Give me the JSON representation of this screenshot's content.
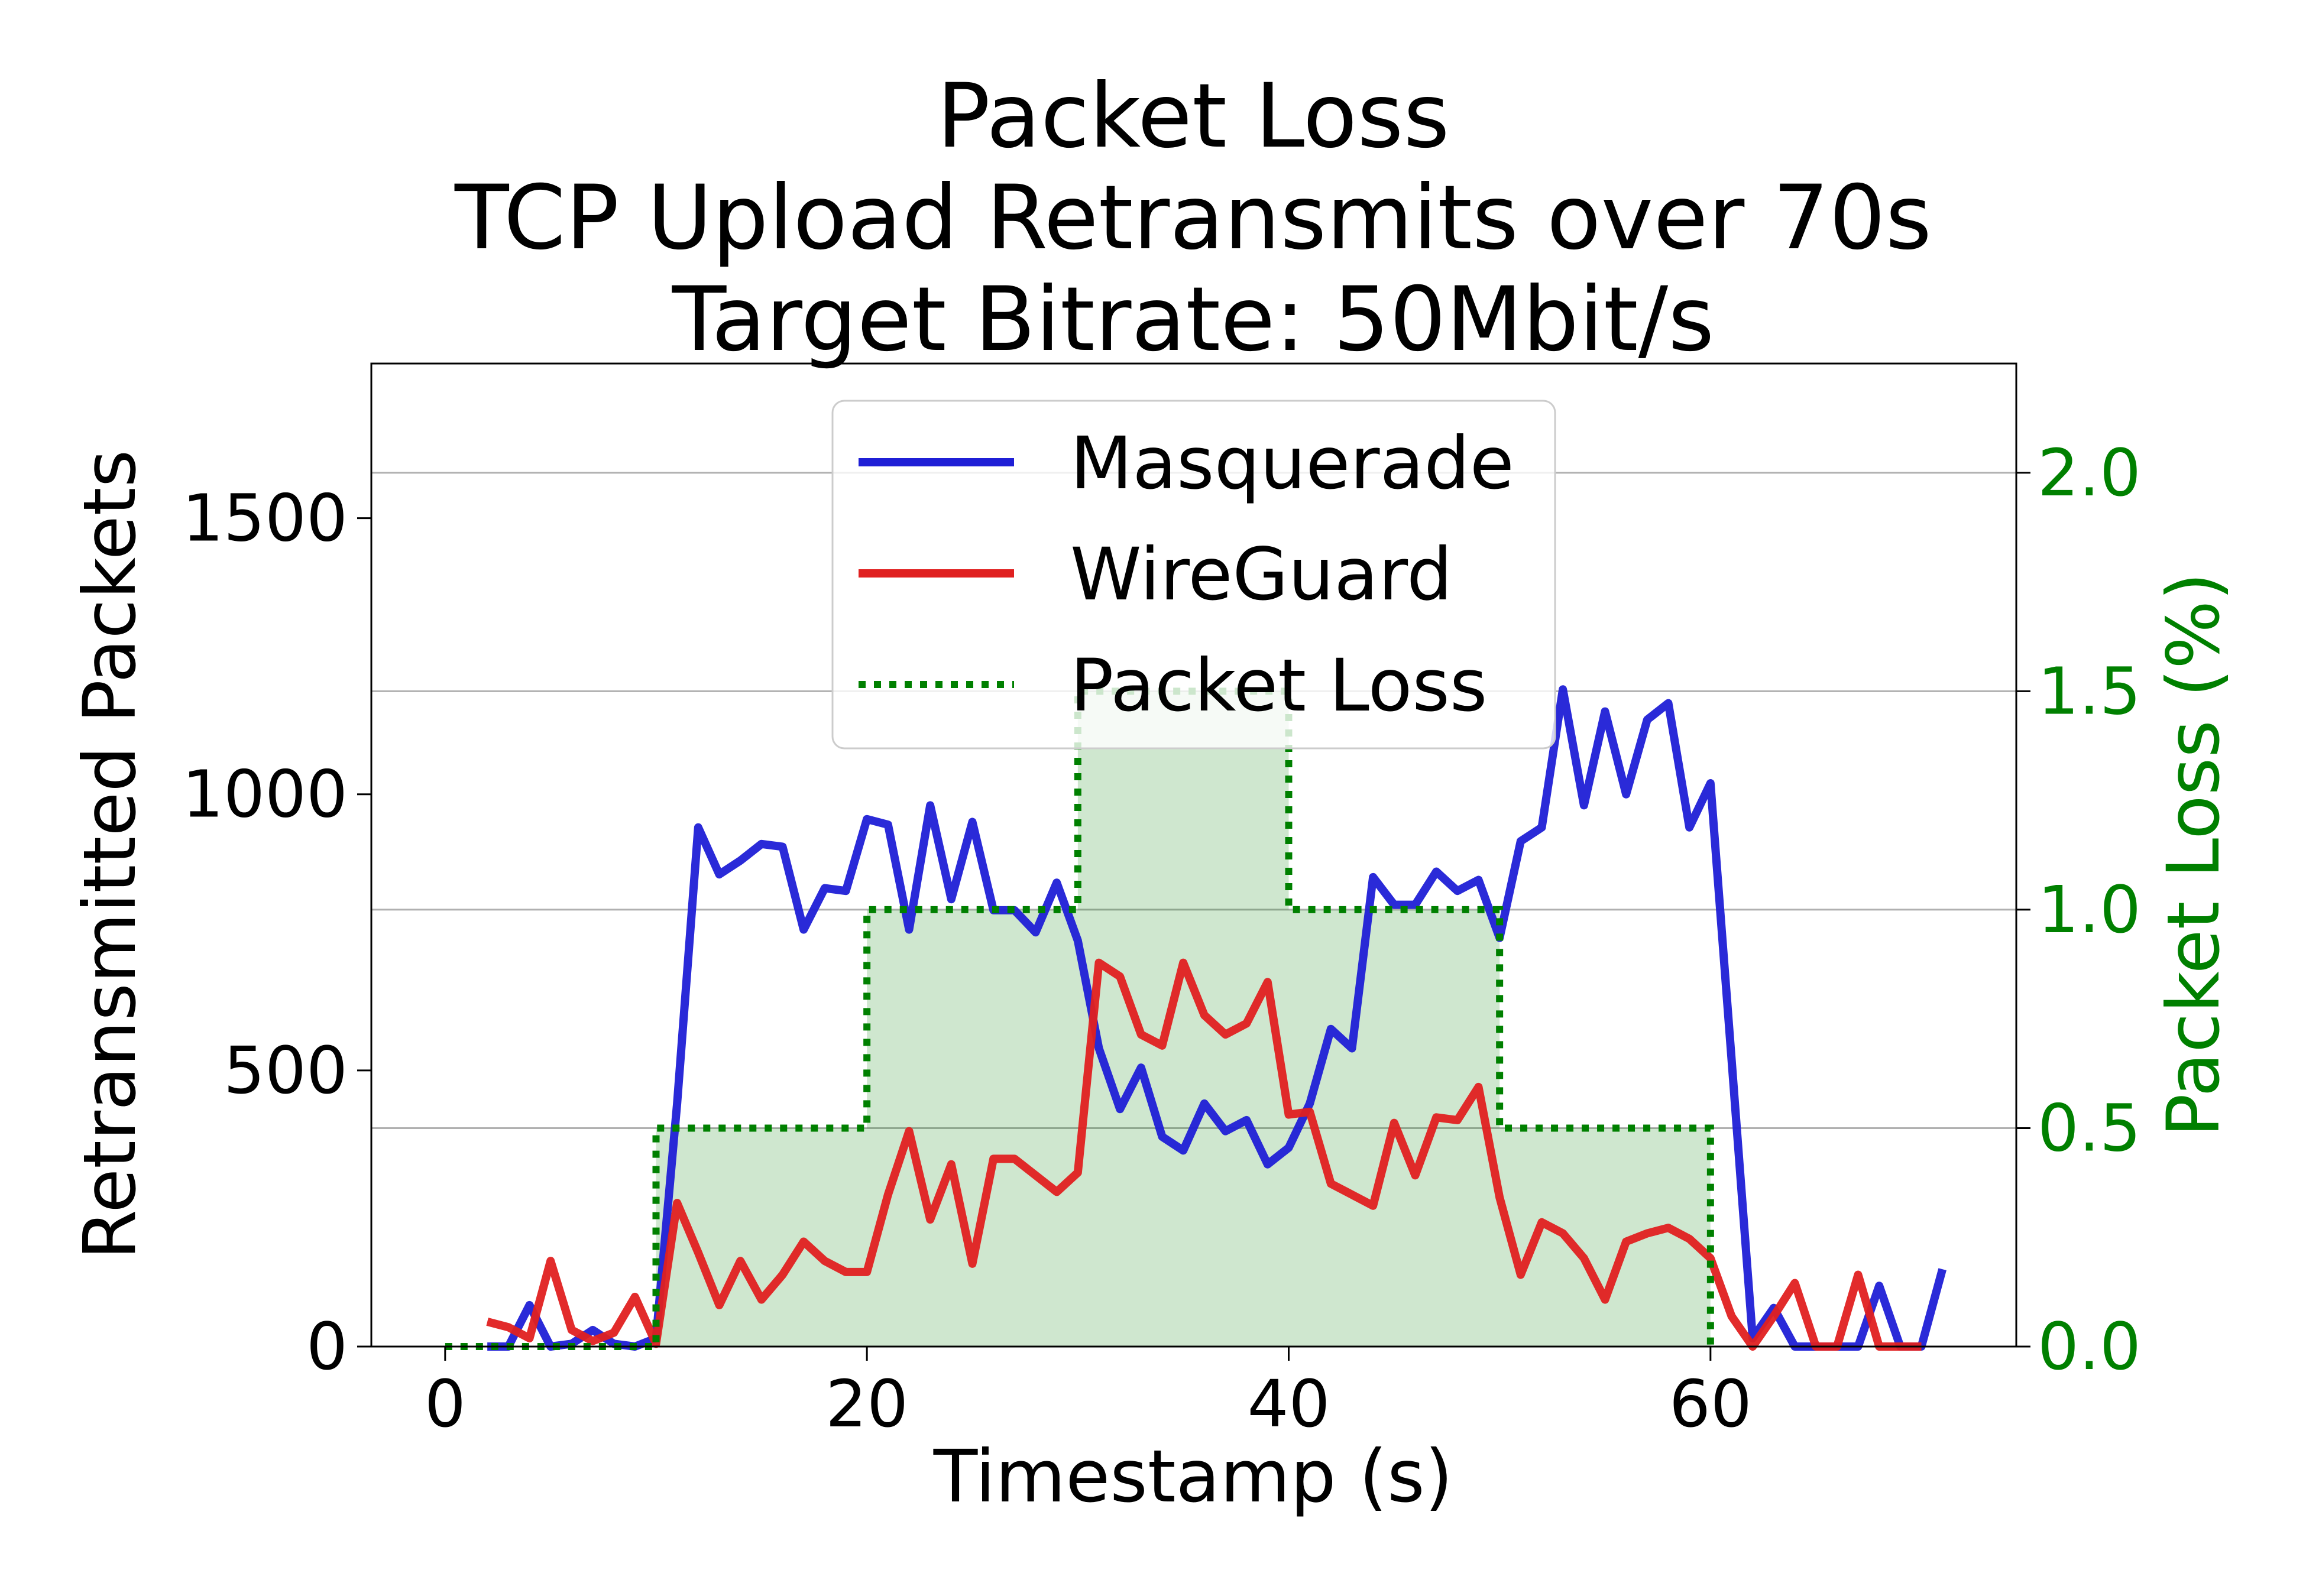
{
  "chart_data": {
    "type": "line",
    "title_lines": [
      "Packet Loss",
      "TCP Upload Retransmits over 70s",
      "Target Bitrate: 50Mbit/s"
    ],
    "xlabel": "Timestamp (s)",
    "ylabel": "Retransmitted Packets",
    "ylabel_right": "Packet Loss (%)",
    "xlim": [
      -3.5,
      74.5
    ],
    "ylim": [
      0,
      1780
    ],
    "ylim_right": [
      0,
      2.25
    ],
    "x_ticks": [
      0,
      20,
      40,
      60
    ],
    "x_tick_labels": [
      "0",
      "20",
      "40",
      "60"
    ],
    "y_ticks": [
      0,
      500,
      1000,
      1500
    ],
    "y_tick_labels": [
      "0",
      "500",
      "1000",
      "1500"
    ],
    "y_right_ticks": [
      0,
      0.5,
      1.0,
      1.5,
      2.0
    ],
    "y_right_tick_labels": [
      "0.0",
      "0.5",
      "1.0",
      "1.5",
      "2.0"
    ],
    "grid": "right-axis horizontal",
    "legend_position": "top-center",
    "series": [
      {
        "name": "Masquerade",
        "color": "#1f1fd6",
        "x": [
          2,
          3,
          4,
          5,
          6,
          7,
          8,
          9,
          10,
          11,
          12,
          13,
          14,
          15,
          16,
          17,
          18,
          19,
          20,
          21,
          22,
          23,
          24,
          25,
          26,
          27,
          28,
          29,
          30,
          31,
          32,
          33,
          34,
          35,
          36,
          37,
          38,
          39,
          40,
          41,
          42,
          43,
          44,
          45,
          46,
          47,
          48,
          49,
          50,
          51,
          52,
          53,
          54,
          55,
          56,
          57,
          58,
          59,
          60,
          61,
          62,
          63,
          64,
          65,
          66,
          67,
          68,
          69,
          70,
          71
        ],
        "values": [
          0,
          0,
          75,
          0,
          5,
          30,
          5,
          0,
          15,
          440,
          940,
          855,
          880,
          910,
          905,
          755,
          830,
          825,
          955,
          945,
          755,
          980,
          810,
          950,
          790,
          790,
          750,
          840,
          735,
          540,
          430,
          505,
          380,
          355,
          440,
          390,
          410,
          330,
          360,
          440,
          575,
          540,
          850,
          800,
          800,
          860,
          825,
          845,
          740,
          915,
          940,
          1190,
          980,
          1150,
          1000,
          1135,
          1165,
          940,
          1020,
          520,
          15,
          70,
          0,
          0,
          0,
          0,
          110,
          0,
          0,
          140
        ]
      },
      {
        "name": "WireGuard",
        "color": "#e02020",
        "x": [
          2,
          3,
          4,
          5,
          6,
          7,
          8,
          9,
          10,
          11,
          12,
          13,
          14,
          15,
          16,
          17,
          18,
          19,
          20,
          21,
          22,
          23,
          24,
          25,
          26,
          27,
          28,
          29,
          30,
          31,
          32,
          33,
          34,
          35,
          36,
          37,
          38,
          39,
          40,
          41,
          42,
          43,
          44,
          45,
          46,
          47,
          48,
          49,
          50,
          51,
          52,
          53,
          54,
          55,
          56,
          57,
          58,
          59,
          60,
          61,
          62,
          63,
          64,
          65,
          66,
          67,
          68,
          69,
          70
        ],
        "values": [
          45,
          35,
          15,
          155,
          30,
          10,
          25,
          90,
          5,
          260,
          170,
          75,
          155,
          85,
          130,
          190,
          155,
          135,
          135,
          275,
          390,
          230,
          330,
          150,
          340,
          340,
          310,
          280,
          315,
          695,
          670,
          565,
          545,
          695,
          600,
          565,
          585,
          660,
          420,
          425,
          295,
          275,
          255,
          405,
          310,
          415,
          410,
          470,
          270,
          130,
          225,
          205,
          160,
          85,
          190,
          205,
          215,
          195,
          160,
          55,
          0,
          55,
          115,
          0,
          0,
          130,
          0,
          0,
          0
        ]
      },
      {
        "name": "Packet Loss",
        "color": "#008000",
        "axis": "right",
        "style": "step-dotted-filled",
        "x": [
          0,
          10,
          20,
          30,
          40,
          50,
          60
        ],
        "values": [
          0,
          0.5,
          1.0,
          1.5,
          1.0,
          0.5,
          0.0
        ]
      }
    ]
  }
}
